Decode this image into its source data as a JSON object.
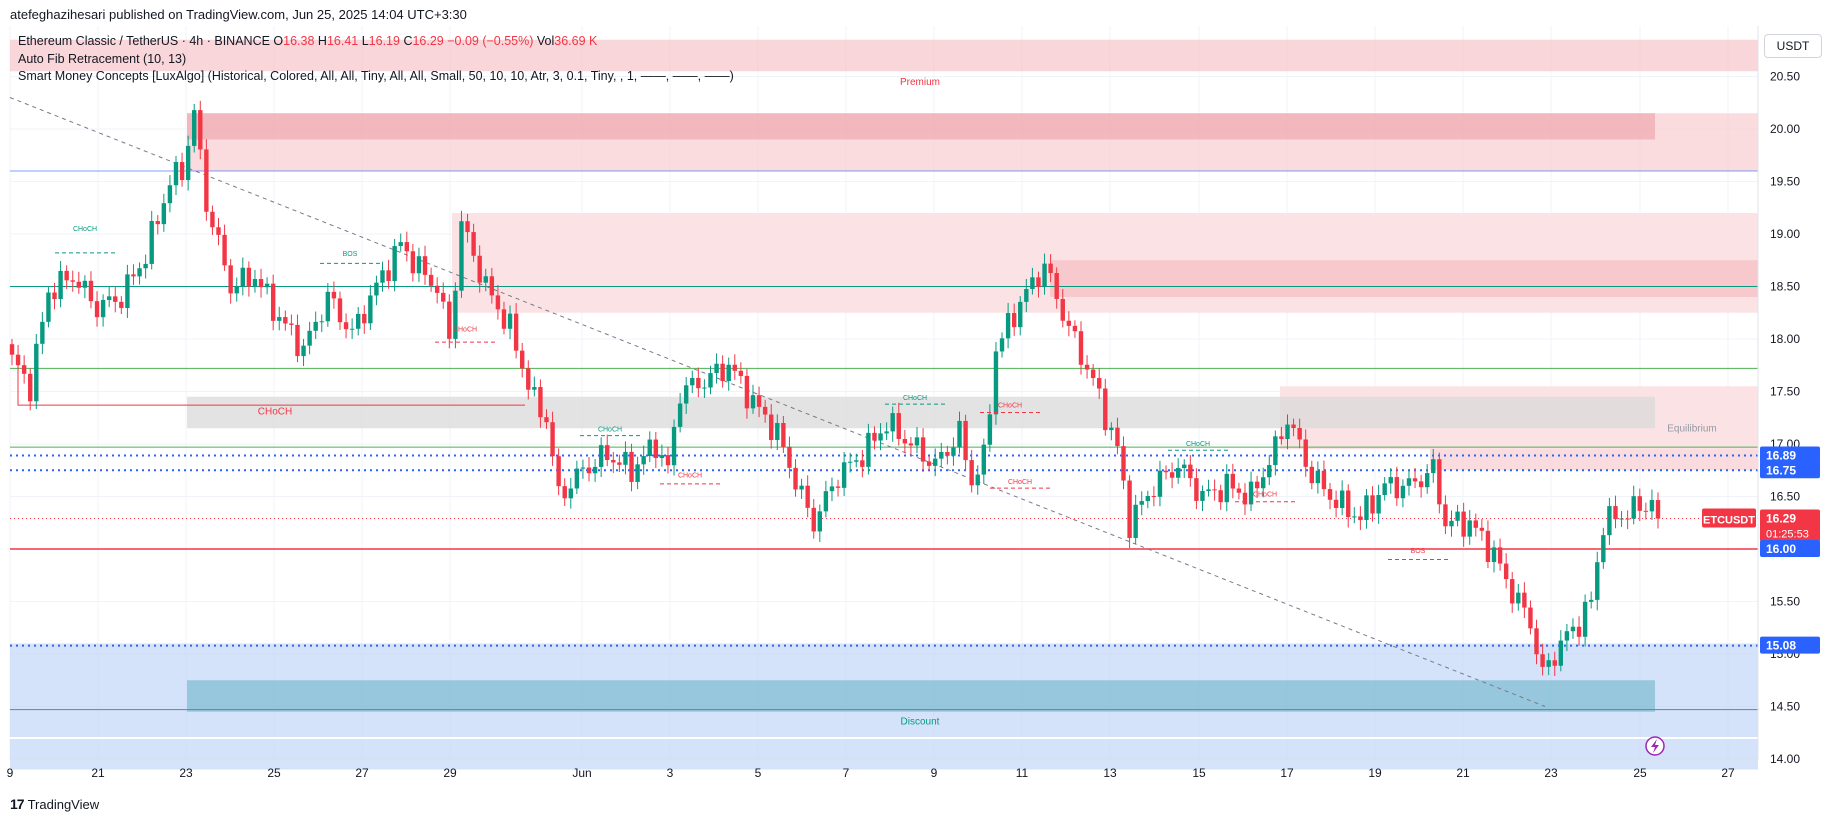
{
  "publisher": "atefeghazihesari published on TradingView.com, Jun 25, 2025 14:04 UTC+3:30",
  "legend": {
    "symbol": "Ethereum Classic / TetherUS · 4h · BINANCE",
    "o_label": "O",
    "o": "16.38",
    "h_label": "H",
    "h": "16.41",
    "l_label": "L",
    "l": "16.19",
    "c_label": "C",
    "c": "16.29",
    "chg": "−0.09 (−0.55%)",
    "vol_label": "Vol",
    "vol": "36.69 K",
    "fib": "Auto Fib Retracement (10, 13)",
    "smc": "Smart Money Concepts [LuxAlgo] (Historical, Colored, All, All, Tiny, All, All, Small, 50, 10, 10, Atr, 3, 0.1, Tiny, , 1, ——, ——, ——)"
  },
  "currency": "USDT",
  "footer_brand": "TradingView",
  "footer_logo": "17",
  "colors": {
    "up": "#089981",
    "down": "#f23645",
    "blue": "#2962ff",
    "premium_zone": "#f7c5c9",
    "discount_zone": "#bfd4f8",
    "equilibrium": "#d9d9d9"
  },
  "chart_data": {
    "type": "candlestick",
    "timeframe": "4h",
    "ylim": [
      13.9,
      20.7
    ],
    "y_ticks": [
      "20.50",
      "20.00",
      "19.50",
      "19.00",
      "18.50",
      "18.00",
      "17.50",
      "17.00",
      "16.50",
      "16.00",
      "15.50",
      "15.00",
      "14.50",
      "14.00"
    ],
    "x_ticks": [
      "9",
      "21",
      "23",
      "25",
      "27",
      "29",
      "Jun",
      "3",
      "5",
      "7",
      "9",
      "11",
      "13",
      "15",
      "17",
      "19",
      "21",
      "23",
      "25",
      "27"
    ],
    "zone_labels": {
      "premium": "Premium",
      "equilibrium": "Equilibrium",
      "discount": "Discount"
    },
    "structure_labels": [
      {
        "text": "CHoCH",
        "type": "bullish"
      },
      {
        "text": "BOS",
        "type": "bullish"
      },
      {
        "text": "CHoCH",
        "type": "bearish"
      },
      {
        "text": "CHoCH",
        "type": "bearish"
      },
      {
        "text": "CHoCH",
        "type": "bullish"
      },
      {
        "text": "CHoCH",
        "type": "bearish"
      },
      {
        "text": "CHoCH",
        "type": "bullish"
      },
      {
        "text": "CHoCH",
        "type": "bearish"
      },
      {
        "text": "CHoCH",
        "type": "bullish"
      },
      {
        "text": "CHoCH",
        "type": "bearish"
      },
      {
        "text": "BOS",
        "type": "bearish"
      }
    ],
    "price_labels": [
      {
        "text": "16.89",
        "value": 16.89,
        "color": "#2962ff"
      },
      {
        "text": "16.75",
        "value": 16.75,
        "color": "#2962ff"
      },
      {
        "text": "ETCUSDT",
        "value": 16.29,
        "color": "#f23645"
      },
      {
        "text": "16.29",
        "value": 16.29,
        "color": "#f23645",
        "sub": "01:25:53"
      },
      {
        "text": "16.00",
        "value": 16.0,
        "color": "#2962ff"
      },
      {
        "text": "15.08",
        "value": 15.08,
        "color": "#2962ff"
      }
    ],
    "anchors": [
      [
        0,
        17.8
      ],
      [
        3,
        17.55
      ],
      [
        6,
        18.45
      ],
      [
        10,
        18.6
      ],
      [
        14,
        18.3
      ],
      [
        18,
        18.4
      ],
      [
        22,
        18.8
      ],
      [
        26,
        19.5
      ],
      [
        28,
        19.6
      ],
      [
        30,
        20.15
      ],
      [
        32,
        19.3
      ],
      [
        36,
        18.5
      ],
      [
        40,
        18.6
      ],
      [
        44,
        18.2
      ],
      [
        48,
        17.9
      ],
      [
        52,
        18.4
      ],
      [
        56,
        18.05
      ],
      [
        60,
        18.5
      ],
      [
        64,
        18.9
      ],
      [
        68,
        18.6
      ],
      [
        70,
        18.5
      ],
      [
        72,
        18.0
      ],
      [
        74,
        19.1
      ],
      [
        78,
        18.5
      ],
      [
        82,
        18.1
      ],
      [
        86,
        17.4
      ],
      [
        88,
        17.25
      ],
      [
        90,
        16.5
      ],
      [
        94,
        16.75
      ],
      [
        98,
        16.9
      ],
      [
        102,
        16.75
      ],
      [
        106,
        17.0
      ],
      [
        108,
        16.75
      ],
      [
        110,
        17.5
      ],
      [
        114,
        17.6
      ],
      [
        118,
        17.75
      ],
      [
        122,
        17.4
      ],
      [
        126,
        17.1
      ],
      [
        130,
        16.5
      ],
      [
        132,
        16.25
      ],
      [
        136,
        16.7
      ],
      [
        140,
        16.9
      ],
      [
        144,
        17.2
      ],
      [
        148,
        17.0
      ],
      [
        152,
        16.8
      ],
      [
        156,
        17.1
      ],
      [
        158,
        16.65
      ],
      [
        160,
        16.85
      ],
      [
        162,
        17.9
      ],
      [
        166,
        18.35
      ],
      [
        170,
        18.7
      ],
      [
        174,
        18.1
      ],
      [
        178,
        17.6
      ],
      [
        182,
        16.95
      ],
      [
        184,
        16.25
      ],
      [
        188,
        16.6
      ],
      [
        192,
        16.8
      ],
      [
        196,
        16.5
      ],
      [
        200,
        16.6
      ],
      [
        204,
        16.5
      ],
      [
        208,
        16.95
      ],
      [
        210,
        17.25
      ],
      [
        214,
        16.7
      ],
      [
        218,
        16.45
      ],
      [
        222,
        16.3
      ],
      [
        226,
        16.6
      ],
      [
        230,
        16.6
      ],
      [
        234,
        16.75
      ],
      [
        236,
        16.25
      ],
      [
        240,
        16.25
      ],
      [
        244,
        15.95
      ],
      [
        246,
        15.7
      ],
      [
        250,
        15.3
      ],
      [
        252,
        14.8
      ],
      [
        255,
        15.1
      ],
      [
        258,
        15.3
      ],
      [
        260,
        15.5
      ],
      [
        262,
        16.25
      ],
      [
        266,
        16.35
      ],
      [
        270,
        16.45
      ],
      [
        271,
        16.29
      ]
    ]
  }
}
